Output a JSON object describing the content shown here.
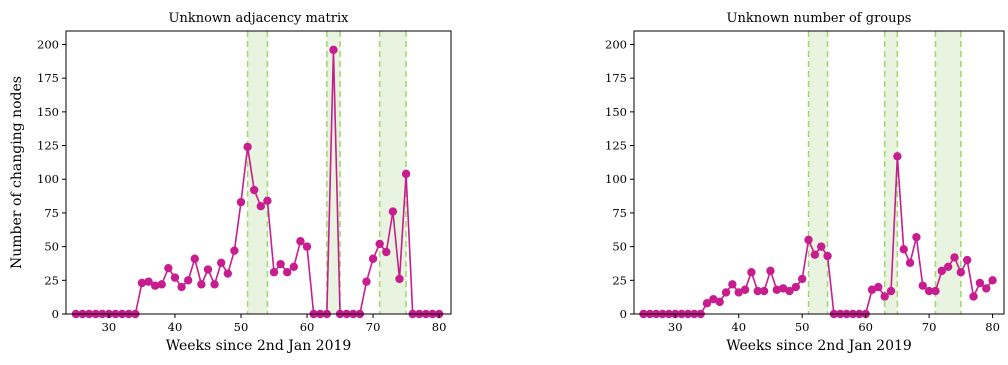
{
  "chart_data": [
    {
      "type": "line",
      "title": "Unknown adjacency matrix",
      "xlabel": "Weeks since 2nd Jan 2019",
      "ylabel": "Number of changing nodes",
      "xlim": [
        23.5,
        81.8
      ],
      "ylim": [
        0,
        210
      ],
      "xticks": [
        30,
        40,
        50,
        60,
        70,
        80
      ],
      "yticks": [
        0,
        25,
        50,
        75,
        100,
        125,
        150,
        175,
        200
      ],
      "grid": false,
      "series_color": "#c71d8e",
      "band_color": "#e8f4df",
      "band_edge_color": "#9ed76a",
      "highlight_bands": [
        [
          51,
          54
        ],
        [
          63,
          65
        ],
        [
          71,
          75
        ]
      ],
      "series": [
        {
          "x": [
            25,
            26,
            27,
            28,
            29,
            30,
            31,
            32,
            33,
            34,
            35,
            36,
            37,
            38,
            39,
            40,
            41,
            42,
            43,
            44,
            45,
            46,
            47,
            48,
            49,
            50,
            51,
            52,
            53,
            54,
            55,
            56,
            57,
            58,
            59,
            60,
            61,
            62,
            63,
            64,
            65,
            66,
            67,
            68,
            69,
            70,
            71,
            72,
            73,
            74,
            75,
            76,
            77,
            78,
            79,
            80
          ],
          "y": [
            0,
            0,
            0,
            0,
            0,
            0,
            0,
            0,
            0,
            0,
            23,
            24,
            21,
            22,
            34,
            27,
            20,
            25,
            41,
            22,
            33,
            22,
            38,
            30,
            47,
            83,
            124,
            92,
            80,
            84,
            31,
            37,
            31,
            35,
            54,
            50,
            0,
            0,
            0,
            196,
            0,
            0,
            0,
            0,
            24,
            41,
            52,
            46,
            76,
            26,
            104,
            0,
            0,
            0,
            0,
            0
          ]
        }
      ]
    },
    {
      "type": "line",
      "title": "Unknown number of groups",
      "xlabel": "Weeks since 2nd Jan 2019",
      "ylabel": "",
      "xlim": [
        23.5,
        81.8
      ],
      "ylim": [
        0,
        210
      ],
      "xticks": [
        30,
        40,
        50,
        60,
        70,
        80
      ],
      "yticks": [
        0,
        25,
        50,
        75,
        100,
        125,
        150,
        175,
        200
      ],
      "grid": false,
      "series_color": "#c71d8e",
      "band_color": "#e8f4df",
      "band_edge_color": "#9ed76a",
      "highlight_bands": [
        [
          51,
          54
        ],
        [
          63,
          65
        ],
        [
          71,
          75
        ]
      ],
      "series": [
        {
          "x": [
            25,
            26,
            27,
            28,
            29,
            30,
            31,
            32,
            33,
            34,
            35,
            36,
            37,
            38,
            39,
            40,
            41,
            42,
            43,
            44,
            45,
            46,
            47,
            48,
            49,
            50,
            51,
            52,
            53,
            54,
            55,
            56,
            57,
            58,
            59,
            60,
            61,
            62,
            63,
            64,
            65,
            66,
            67,
            68,
            69,
            70,
            71,
            72,
            73,
            74,
            75,
            76,
            77,
            78,
            79,
            80
          ],
          "y": [
            0,
            0,
            0,
            0,
            0,
            0,
            0,
            0,
            0,
            0,
            8,
            11,
            9,
            16,
            22,
            16,
            18,
            31,
            17,
            17,
            32,
            18,
            19,
            17,
            20,
            26,
            55,
            44,
            50,
            43,
            0,
            0,
            0,
            0,
            0,
            0,
            18,
            20,
            13,
            17,
            117,
            48,
            38,
            57,
            21,
            17,
            17,
            32,
            35,
            42,
            31,
            40,
            13,
            23,
            19,
            25
          ]
        }
      ]
    }
  ]
}
